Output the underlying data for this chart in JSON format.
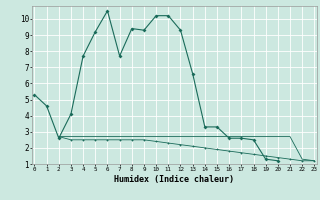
{
  "xlabel": "Humidex (Indice chaleur)",
  "background_color": "#cce8e0",
  "grid_color": "#ffffff",
  "line_color": "#1a6b5a",
  "x_main": [
    0,
    1,
    2,
    3,
    4,
    5,
    6,
    7,
    8,
    9,
    10,
    11,
    12,
    13,
    14,
    15,
    16,
    17,
    18,
    19,
    20
  ],
  "y_main": [
    5.3,
    4.6,
    2.6,
    4.1,
    7.7,
    9.2,
    10.5,
    7.7,
    9.4,
    9.3,
    10.2,
    10.2,
    9.3,
    6.6,
    3.3,
    3.3,
    2.6,
    2.6,
    2.5,
    1.3,
    1.2
  ],
  "x_flat1": [
    2,
    3,
    4,
    5,
    6,
    7,
    8,
    9,
    10,
    11,
    12,
    13,
    14,
    15,
    16,
    17,
    18,
    19,
    20,
    21,
    22,
    23
  ],
  "y_flat1": [
    2.7,
    2.5,
    2.5,
    2.5,
    2.5,
    2.5,
    2.5,
    2.5,
    2.4,
    2.3,
    2.2,
    2.1,
    2.0,
    1.9,
    1.8,
    1.7,
    1.6,
    1.5,
    1.4,
    1.3,
    1.2,
    1.2
  ],
  "x_flat2": [
    2,
    3,
    4,
    5,
    6,
    7,
    8,
    9,
    10,
    11,
    12,
    13,
    14,
    15,
    16,
    17,
    18,
    19,
    20,
    21,
    22,
    23
  ],
  "y_flat2": [
    2.7,
    2.7,
    2.7,
    2.7,
    2.7,
    2.7,
    2.7,
    2.7,
    2.7,
    2.7,
    2.7,
    2.7,
    2.7,
    2.7,
    2.7,
    2.7,
    2.7,
    2.7,
    2.7,
    2.7,
    1.3,
    1.2
  ],
  "ylim": [
    1,
    10.8
  ],
  "xlim": [
    -0.2,
    23.2
  ],
  "xticks": [
    0,
    1,
    2,
    3,
    4,
    5,
    6,
    7,
    8,
    9,
    10,
    11,
    12,
    13,
    14,
    15,
    16,
    17,
    18,
    19,
    20,
    21,
    22,
    23
  ],
  "yticks": [
    1,
    2,
    3,
    4,
    5,
    6,
    7,
    8,
    9,
    10
  ]
}
